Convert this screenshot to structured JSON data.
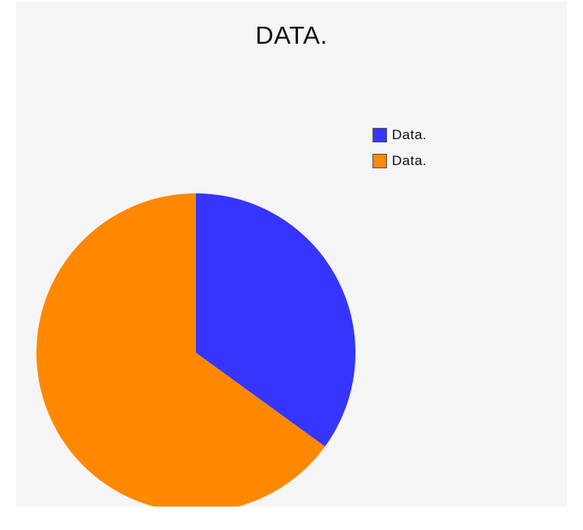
{
  "chart_data": {
    "type": "pie",
    "title": "DATA.",
    "legend_position": "top-right",
    "slices": [
      {
        "label": "Data.",
        "value": 35,
        "color": "#3535ff"
      },
      {
        "label": "Data.",
        "value": 65,
        "color": "#ff8800"
      }
    ]
  }
}
